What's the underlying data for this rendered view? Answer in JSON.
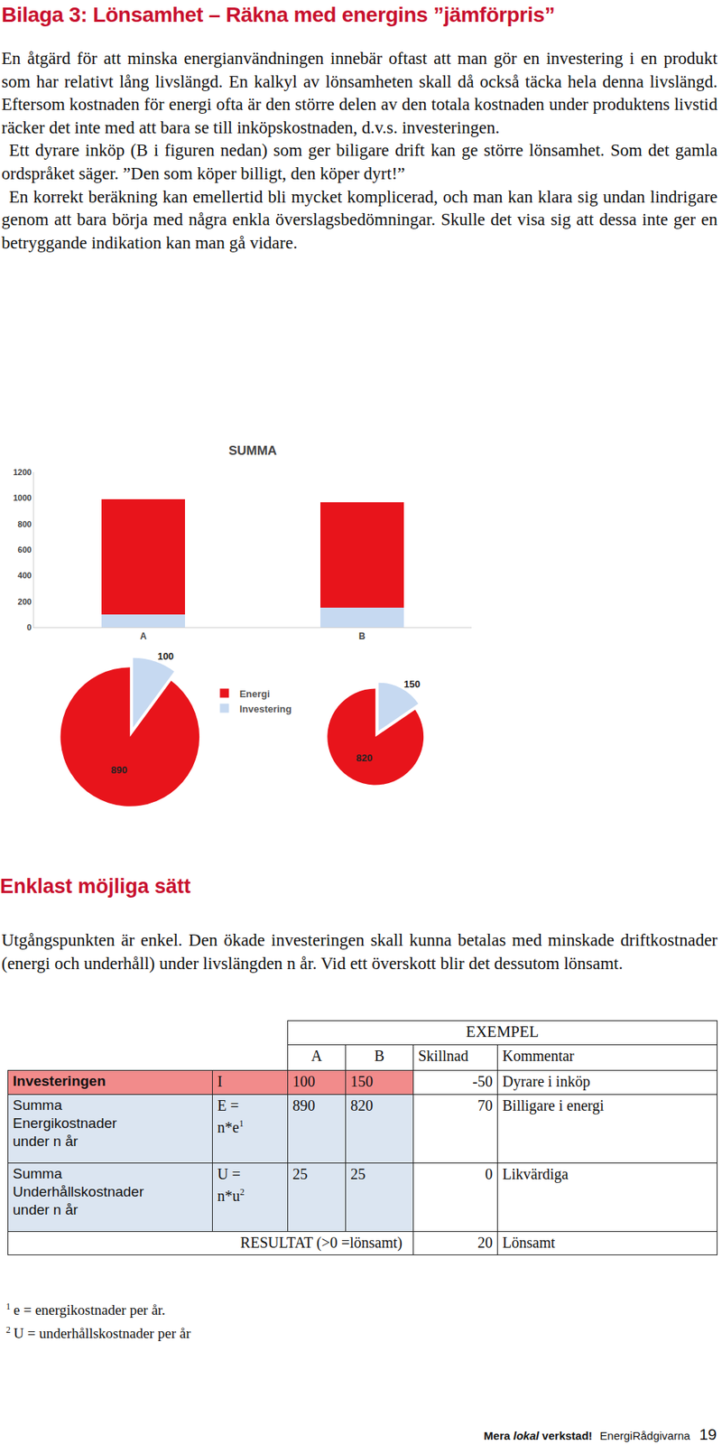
{
  "header": {
    "title": "Bilaga 3: Lönsamhet – Räkna med energins ”jämförpris”"
  },
  "intro": {
    "paragraphs": [
      "En åtgärd för att minska energianvändningen innebär oftast att man gör en investering i en produkt som har relativt lång livslängd. En kalkyl av lönsamheten skall då också täcka hela denna livslängd. Eftersom kostnaden för energi ofta är den större delen av den totala kostnaden under produktens livstid räcker det inte med att bara se till inköpskostnaden, d.v.s. investeringen.",
      "Ett dyrare inköp (B i figuren nedan) som ger biligare drift kan ge större lönsamhet. Som det gamla ordspråket säger. ”Den som köper billigt, den köper dyrt!”",
      "En korrekt beräkning kan emellertid bli mycket komplicerad, och man kan klara sig undan lindrigare genom att bara börja med några enkla överslagsbedömningar. Skulle det visa sig att dessa inte ger en betryggande indikation kan man gå vidare."
    ]
  },
  "chart_data": [
    {
      "type": "bar",
      "title": "SUMMA",
      "stacked": true,
      "grid": false,
      "categories": [
        "A",
        "B"
      ],
      "series": [
        {
          "name": "Investering",
          "color": "#c6d9f1",
          "values": [
            100,
            150
          ]
        },
        {
          "name": "Energi",
          "color": "#e8141b",
          "values": [
            890,
            820
          ]
        }
      ],
      "ylim": [
        0,
        1200
      ],
      "yticks": [
        0,
        200,
        400,
        600,
        800,
        1000,
        1200
      ]
    },
    {
      "type": "pie",
      "categories": [
        "Investering",
        "Energi"
      ],
      "values": [
        100,
        890
      ],
      "colors": [
        "#c6d9f1",
        "#e8141b"
      ],
      "data_labels": true,
      "legend": "right"
    },
    {
      "type": "pie",
      "categories": [
        "Investering",
        "Energi"
      ],
      "values": [
        150,
        820
      ],
      "colors": [
        "#c6d9f1",
        "#e8141b"
      ],
      "data_labels": true
    }
  ],
  "section": {
    "title": "Enklast möjliga sätt",
    "paragraphs": [
      "Utgångspunkten är enkel. Den ökade investeringen skall kunna betalas med minskade driftkostnader (energi och underhåll) under livslängden n år. Vid ett överskott blir det dessutom lönsamt."
    ]
  },
  "table": {
    "header": "EXEMPEL",
    "columns": [
      "A",
      "B",
      "Skillnad",
      "Kommentar"
    ],
    "rows": [
      {
        "label": [
          "Investeringen"
        ],
        "symbol": [
          "I"
        ],
        "a": 100,
        "b": 150,
        "diff": -50,
        "comment": "Dyrare i inköp"
      },
      {
        "label": [
          "Summa",
          "Energikostnader",
          "under n år"
        ],
        "symbol": [
          "E =",
          "n*e"
        ],
        "note": 1,
        "a": 890,
        "b": 820,
        "diff": 70,
        "comment": "Billigare i energi"
      },
      {
        "label": [
          "Summa",
          "Underhållskostnader",
          "under n år"
        ],
        "symbol": [
          "U =",
          "n*u"
        ],
        "note": 2,
        "a": 25,
        "b": 25,
        "diff": 0,
        "comment": "Likvärdiga"
      }
    ],
    "result": {
      "label": "RESULTAT (>0 =lönsamt)",
      "value": 20,
      "comment": "Lönsamt"
    }
  },
  "footnotes": [
    {
      "mark": 1,
      "text": "e = energikostnader per år."
    },
    {
      "mark": 2,
      "text": "U = underhållskostnader per år"
    }
  ],
  "footer": {
    "slogan": [
      {
        "text": "Mera "
      },
      {
        "text": "lokal",
        "italic": true
      },
      {
        "text": " verkstad!"
      }
    ],
    "org": "EnergiRådgivarna",
    "page": 19
  }
}
